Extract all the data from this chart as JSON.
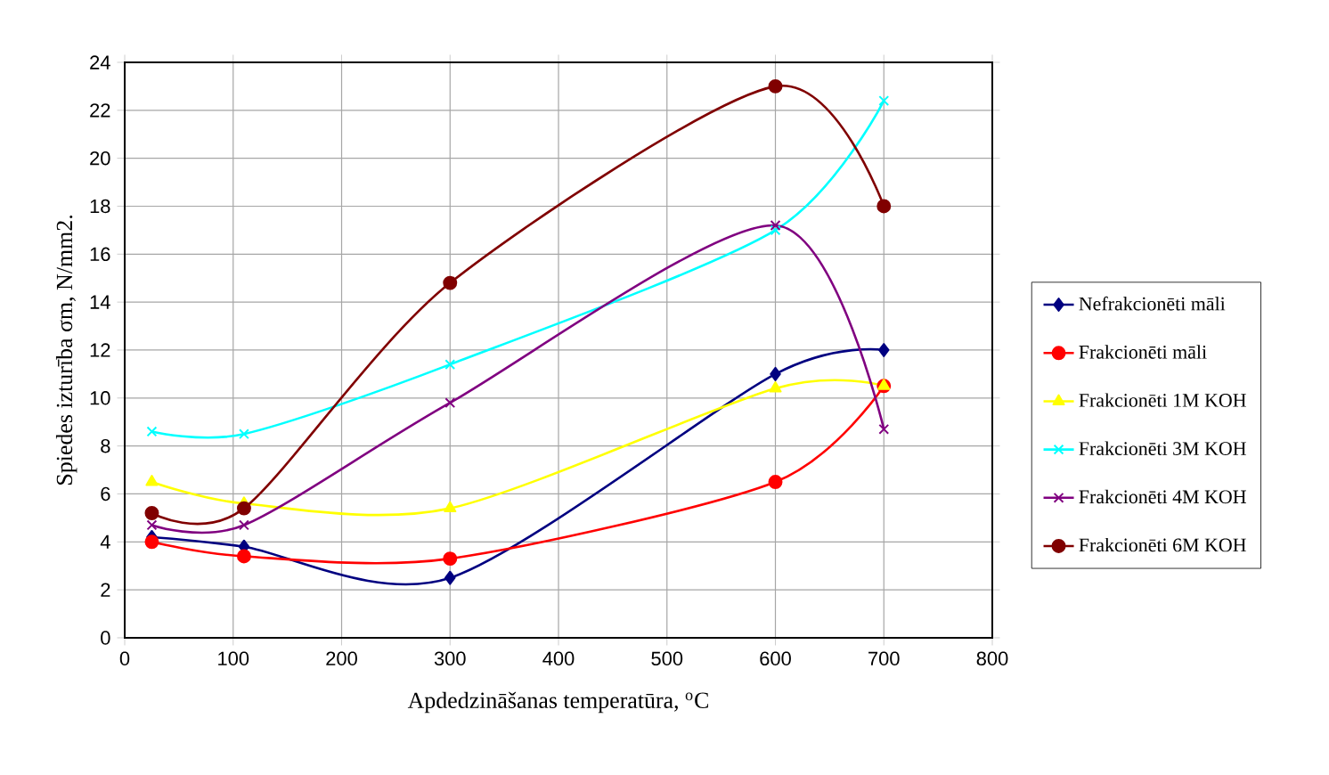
{
  "chart_data": {
    "type": "line",
    "xlabel": "Apdedzināšanas temperatūra, $^{o}$C",
    "ylabel": "Spiedes izturība σm, N/mm2.",
    "x": [
      25,
      110,
      300,
      600,
      700
    ],
    "series": [
      {
        "name": "Nefrakcionēti māli",
        "color": "#000080",
        "marker": "diamond",
        "values": [
          4.2,
          3.8,
          2.5,
          11.0,
          12.0
        ]
      },
      {
        "name": "Frakcionēti māli",
        "color": "#ff0000",
        "marker": "circle",
        "values": [
          4.0,
          3.4,
          3.3,
          6.5,
          10.5
        ]
      },
      {
        "name": "Frakcionēti 1M KOH",
        "color": "#ffff00",
        "marker": "triangle",
        "values": [
          6.5,
          5.6,
          5.4,
          10.4,
          10.5
        ]
      },
      {
        "name": "Frakcionēti 3M KOH",
        "color": "#00ffff",
        "marker": "cross",
        "values": [
          8.6,
          8.5,
          11.4,
          17.0,
          22.4
        ]
      },
      {
        "name": "Frakcionēti 4M KOH",
        "color": "#800080",
        "marker": "cross",
        "values": [
          4.7,
          4.7,
          9.8,
          17.2,
          8.7
        ]
      },
      {
        "name": "Frakcionēti 6M KOH",
        "color": "#800000",
        "marker": "circle",
        "values": [
          5.2,
          5.4,
          14.8,
          23.0,
          18.0
        ]
      }
    ],
    "xlim": [
      0,
      800
    ],
    "ylim": [
      0,
      24
    ],
    "xticks": [
      0,
      100,
      200,
      300,
      400,
      500,
      600,
      700,
      800
    ],
    "yticks": [
      0,
      2,
      4,
      6,
      8,
      10,
      12,
      14,
      16,
      18,
      20,
      22,
      24
    ],
    "grid": true,
    "legend": "right",
    "line_style": "solid"
  }
}
